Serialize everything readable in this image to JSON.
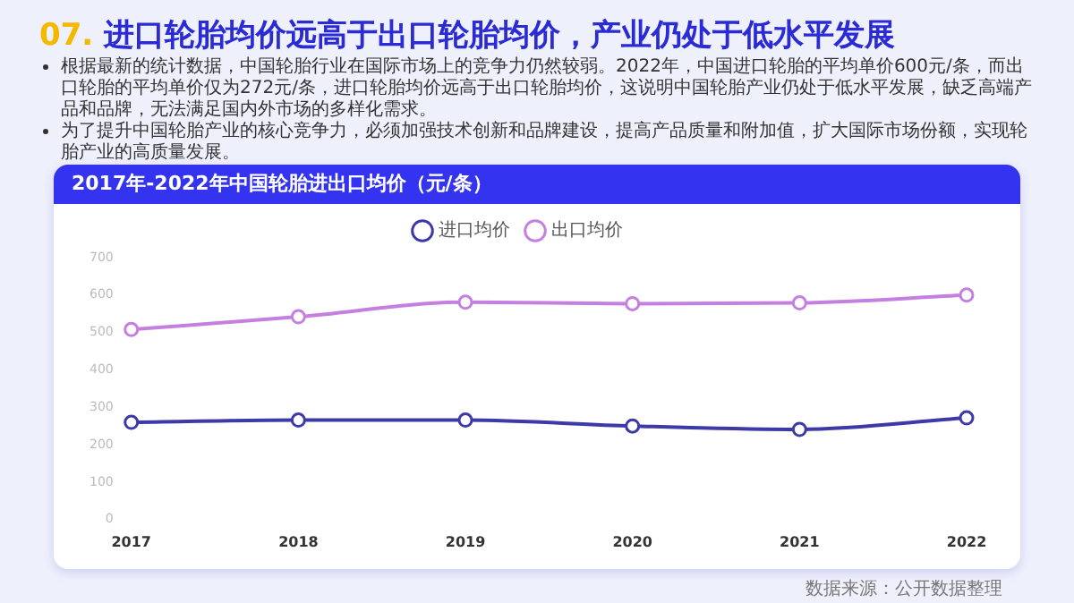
{
  "chart_data": {
    "type": "line",
    "title": "07. 进口轮胎均价远高于出口轮胎均价，产业仍处于低水平发展",
    "subtitle": "2017年-2022年中国轮胎进出口均价（元/条）",
    "annotations": [
      "根据最新的统计数据，中国轮胎行业在国际市场上的竞争力仍然较弱。2022年，中国进口轮胎的平均单价600元/条，而出口轮胎的平均单价仅为272元/条，进口轮胎均价远高于出口轮胎均价，这说明中国轮胎产业仍处于低水平发展，缺乏高端产品和品牌，无法满足国内外市场的多样化需求。",
      "为了提升中国轮胎产业的核心竞争力，必须加强技术创新和品牌建设，提高产品质量和附加值，扩大国际市场份额，实现轮胎产业的高质量发展。",
      "数据来源：公开数据整理"
    ],
    "categories": [
      "2017",
      "2018",
      "2019",
      "2020",
      "2021",
      "2022"
    ],
    "series": [
      {
        "name": "进口均价",
        "color": "#3d3aa8",
        "values": [
          260,
          266,
          266,
          250,
          241,
          272
        ]
      },
      {
        "name": "出口均价",
        "color": "#c47fe0",
        "values": [
          508,
          542,
          581,
          577,
          579,
          600
        ]
      }
    ],
    "ylim": [
      0,
      700
    ],
    "yticks": [
      0,
      100,
      200,
      300,
      400,
      500,
      600,
      700
    ],
    "grid": false,
    "legend": "top",
    "marker": "circle",
    "line_style": "solid"
  }
}
